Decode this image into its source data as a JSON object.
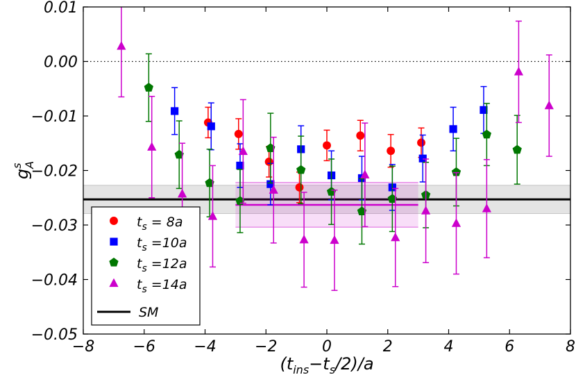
{
  "chart_data": {
    "type": "scatter",
    "title": "",
    "xlabel": "(t_ins−t_s/2)/a",
    "ylabel": "g_A^s",
    "xlim": [
      -8,
      8
    ],
    "ylim": [
      -0.05,
      0.01
    ],
    "xticks": [
      -8,
      -6,
      -4,
      -2,
      0,
      2,
      4,
      6,
      8
    ],
    "xtick_labels": [
      "−8",
      "−6",
      "−4",
      "−2",
      "0",
      "2",
      "4",
      "6",
      "8"
    ],
    "yticks": [
      0.01,
      0.0,
      -0.01,
      -0.02,
      -0.03,
      -0.04,
      -0.05
    ],
    "ytick_labels": [
      "0.01",
      "0.00",
      "−0.01",
      "−0.02",
      "−0.03",
      "−0.04",
      "−0.05"
    ],
    "zero_line": 0.0,
    "series": [
      {
        "name": "t_s = 8a",
        "label_main": "t",
        "label_sub": "s",
        "label_rest": " = 8a",
        "color": "#ff0000",
        "marker": "circle",
        "x": [
          -3.9,
          -2.9,
          -1.9,
          -0.9,
          0.0,
          1.1,
          2.1,
          3.1
        ],
        "y": [
          -0.0112,
          -0.0133,
          -0.0184,
          -0.0231,
          -0.0154,
          -0.0136,
          -0.0164,
          -0.0149
        ],
        "yerr": [
          0.0028,
          0.0028,
          0.0028,
          0.0028,
          0.0028,
          0.0028,
          0.003,
          0.0027
        ]
      },
      {
        "name": "t_s =10a",
        "label_main": "t",
        "label_sub": "s",
        "label_rest": " =10a",
        "color": "#0000ff",
        "marker": "square",
        "x": [
          -5.0,
          -3.8,
          -2.85,
          -1.85,
          -0.85,
          0.15,
          1.15,
          2.15,
          3.15,
          4.15,
          5.15
        ],
        "y": [
          -0.0091,
          -0.0119,
          -0.0191,
          -0.0225,
          -0.0161,
          -0.0209,
          -0.0214,
          -0.0231,
          -0.0178,
          -0.0124,
          -0.0089
        ],
        "yerr": [
          0.0043,
          0.0043,
          0.004,
          0.0038,
          0.0043,
          0.0045,
          0.004,
          0.0042,
          0.0043,
          0.004,
          0.0043
        ]
      },
      {
        "name": "t_s =12a",
        "label_main": "t",
        "label_sub": "s",
        "label_rest": " =12a",
        "color": "#007700",
        "marker": "pentagon",
        "x": [
          -5.85,
          -4.85,
          -3.85,
          -2.85,
          -1.85,
          -0.85,
          0.15,
          1.15,
          2.15,
          3.25,
          4.25,
          5.25,
          6.25
        ],
        "y": [
          -0.0048,
          -0.0171,
          -0.0223,
          -0.0256,
          -0.0159,
          -0.0199,
          -0.0239,
          -0.0275,
          -0.0252,
          -0.0245,
          -0.0203,
          -0.0134,
          -0.0162
        ],
        "yerr": [
          0.0062,
          0.0062,
          0.0062,
          0.0058,
          0.0064,
          0.0062,
          0.006,
          0.006,
          0.006,
          0.006,
          0.0062,
          0.0057,
          0.0063
        ]
      },
      {
        "name": "t_s =14a",
        "label_main": "t",
        "label_sub": "s",
        "label_rest": " =14a",
        "color": "#cc00cc",
        "marker": "triangle",
        "x": [
          -6.75,
          -5.75,
          -4.75,
          -3.75,
          -2.75,
          -1.75,
          -0.75,
          0.25,
          1.25,
          2.25,
          3.25,
          4.25,
          5.25,
          6.3,
          7.3
        ],
        "y": [
          0.0028,
          -0.0157,
          -0.0243,
          -0.0284,
          -0.0165,
          -0.0236,
          -0.0327,
          -0.0328,
          -0.0208,
          -0.0323,
          -0.0274,
          -0.0297,
          -0.027,
          -0.0019,
          -0.0081
        ],
        "yerr": [
          0.0093,
          0.0093,
          0.0093,
          0.0093,
          0.0095,
          0.0097,
          0.0087,
          0.0092,
          0.0095,
          0.009,
          0.0095,
          0.0093,
          0.009,
          0.0093,
          0.0093
        ]
      }
    ],
    "bands": [
      {
        "name": "SM",
        "label": "SM",
        "color": "#000000",
        "x_range": [
          -8,
          8
        ],
        "y": -0.0253,
        "band": [
          -0.0279,
          -0.0227
        ],
        "band_color": "#aaaaaa"
      },
      {
        "name": "fit",
        "color": "#cc00cc",
        "x_range": [
          -3,
          3
        ],
        "y": -0.0263,
        "band": [
          -0.0304,
          -0.0222
        ],
        "band_color": "#cc00cc"
      }
    ],
    "legend": {
      "position": "lower-left"
    }
  }
}
